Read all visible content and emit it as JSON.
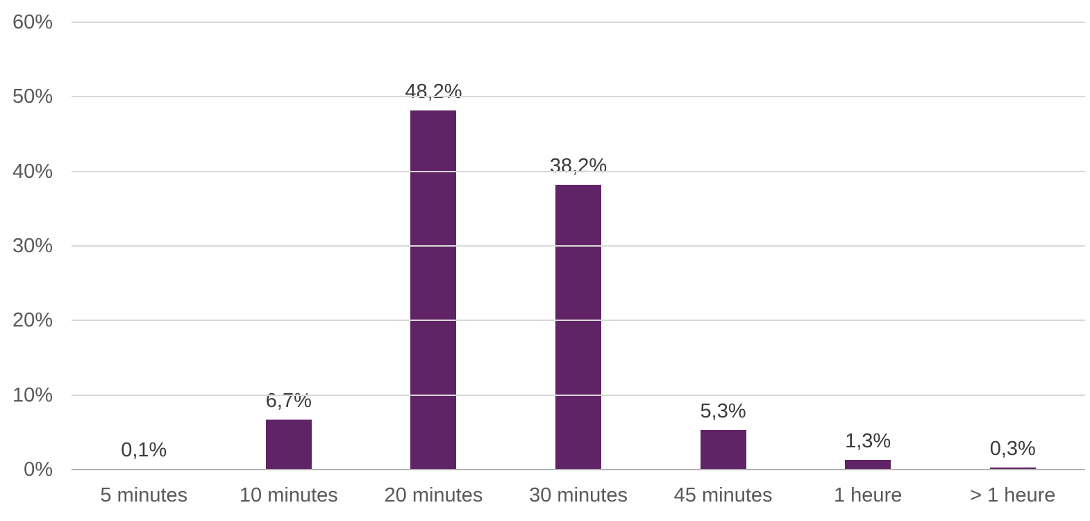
{
  "chart_data": {
    "type": "bar",
    "title": "",
    "xlabel": "",
    "ylabel": "",
    "categories": [
      "5 minutes",
      "10 minutes",
      "20 minutes",
      "30 minutes",
      "45 minutes",
      "1 heure",
      "> 1 heure"
    ],
    "values": [
      0.1,
      6.7,
      48.2,
      38.2,
      5.3,
      1.3,
      0.3
    ],
    "value_labels": [
      "0,1%",
      "6,7%",
      "48,2%",
      "38,2%",
      "5,3%",
      "1,3%",
      "0,3%"
    ],
    "y_ticks": [
      "0%",
      "10%",
      "20%",
      "30%",
      "40%",
      "50%",
      "60%"
    ],
    "ylim": [
      0,
      60
    ],
    "grid": true,
    "legend": "none",
    "colors": {
      "bar": "#602466",
      "value_label": "#3b3b3b",
      "axis_label": "#595959",
      "gridline": "#d9d9d9",
      "axis_line": "#b3b3b3",
      "background": "#ffffff"
    }
  }
}
